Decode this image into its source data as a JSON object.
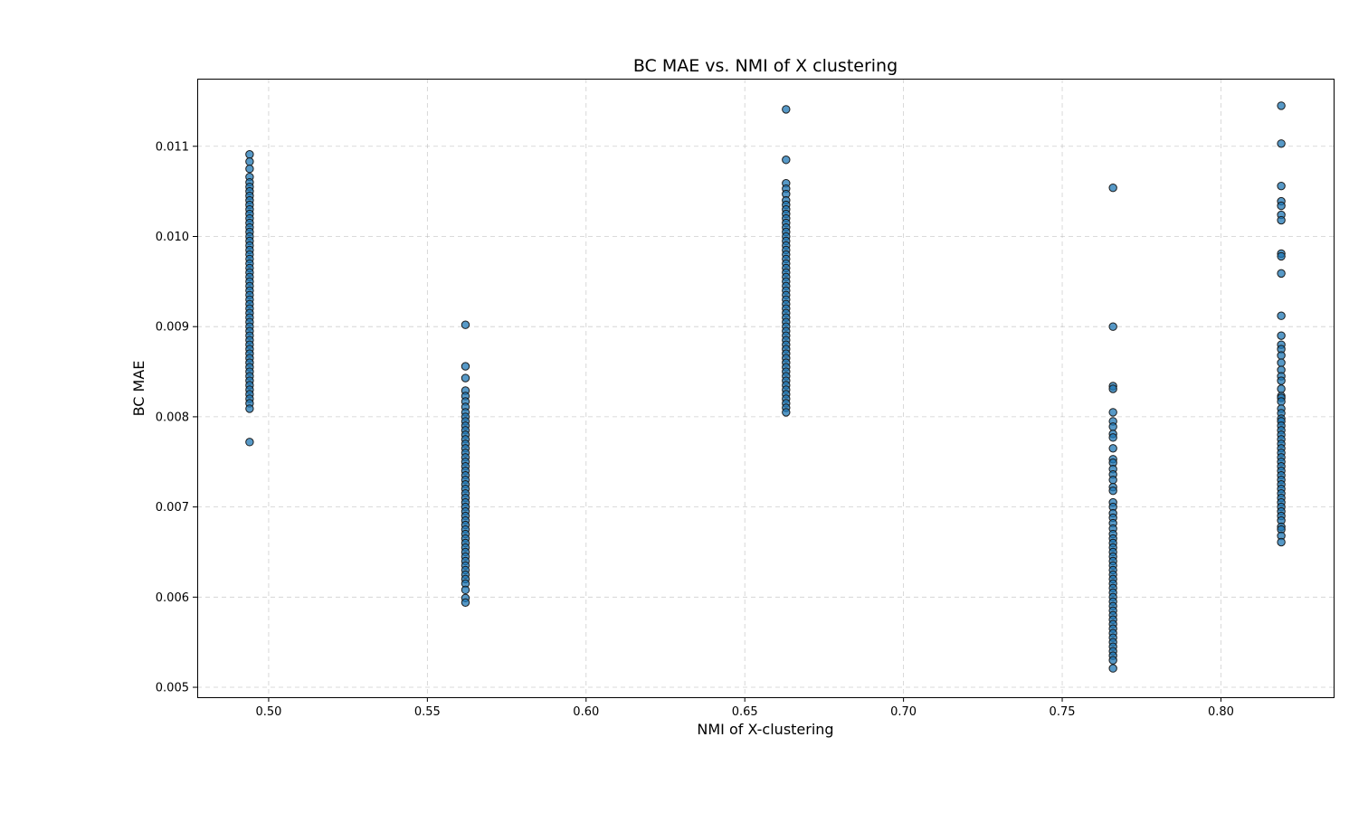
{
  "chart_data": {
    "type": "scatter",
    "title": "BC MAE vs. NMI of X clustering",
    "xlabel": "NMI of X-clustering",
    "ylabel": "BC MAE",
    "xlim": [
      0.4775,
      0.8355
    ],
    "ylim": [
      0.00489,
      0.01175
    ],
    "xticks": [
      0.5,
      0.55,
      0.6,
      0.65,
      0.7,
      0.75,
      0.8
    ],
    "xtick_labels": [
      "0.50",
      "0.55",
      "0.60",
      "0.65",
      "0.70",
      "0.75",
      "0.80"
    ],
    "yticks": [
      0.005,
      0.006,
      0.007,
      0.008,
      0.009,
      0.01,
      0.011
    ],
    "ytick_labels": [
      "0.005",
      "0.006",
      "0.007",
      "0.008",
      "0.009",
      "0.010",
      "0.011"
    ],
    "grid": true,
    "marker_color": "#1f77b4",
    "series": [
      {
        "x": 0.494,
        "y": [
          0.01091,
          0.01083,
          0.01075,
          0.01066,
          0.0106,
          0.01055,
          0.0105,
          0.01045,
          0.0104,
          0.01035,
          0.0103,
          0.01025,
          0.0102,
          0.01015,
          0.0101,
          0.01005,
          0.01,
          0.00995,
          0.0099,
          0.00985,
          0.0098,
          0.00975,
          0.0097,
          0.00965,
          0.0096,
          0.00955,
          0.0095,
          0.00945,
          0.0094,
          0.00935,
          0.0093,
          0.00925,
          0.0092,
          0.00915,
          0.0091,
          0.00905,
          0.009,
          0.00895,
          0.0089,
          0.00885,
          0.0088,
          0.00875,
          0.0087,
          0.00865,
          0.0086,
          0.00855,
          0.0085,
          0.00845,
          0.0084,
          0.00835,
          0.0083,
          0.00825,
          0.0082,
          0.00815,
          0.00809,
          0.00772
        ]
      },
      {
        "x": 0.562,
        "y": [
          0.00902,
          0.00856,
          0.00843,
          0.00829,
          0.00823,
          0.00817,
          0.00811,
          0.00805,
          0.008,
          0.00795,
          0.0079,
          0.00785,
          0.0078,
          0.00775,
          0.0077,
          0.00765,
          0.0076,
          0.00755,
          0.0075,
          0.00745,
          0.0074,
          0.00735,
          0.0073,
          0.00725,
          0.0072,
          0.00715,
          0.0071,
          0.00705,
          0.007,
          0.00695,
          0.0069,
          0.00685,
          0.0068,
          0.00675,
          0.0067,
          0.00665,
          0.0066,
          0.00655,
          0.0065,
          0.00645,
          0.0064,
          0.00635,
          0.0063,
          0.00625,
          0.0062,
          0.00615,
          0.00608,
          0.00599,
          0.00594
        ]
      },
      {
        "x": 0.663,
        "y": [
          0.01141,
          0.01085,
          0.01059,
          0.01053,
          0.01047,
          0.0104,
          0.01035,
          0.0103,
          0.01025,
          0.0102,
          0.01015,
          0.0101,
          0.01005,
          0.01,
          0.00995,
          0.0099,
          0.00985,
          0.0098,
          0.00975,
          0.0097,
          0.00965,
          0.0096,
          0.00955,
          0.0095,
          0.00945,
          0.0094,
          0.00935,
          0.0093,
          0.00925,
          0.0092,
          0.00915,
          0.0091,
          0.00905,
          0.009,
          0.00895,
          0.0089,
          0.00885,
          0.0088,
          0.00875,
          0.0087,
          0.00865,
          0.0086,
          0.00855,
          0.0085,
          0.00845,
          0.0084,
          0.00835,
          0.0083,
          0.00825,
          0.0082,
          0.00815,
          0.0081,
          0.00805
        ]
      },
      {
        "x": 0.766,
        "y": [
          0.01054,
          0.009,
          0.00834,
          0.00831,
          0.00805,
          0.00795,
          0.00789,
          0.00781,
          0.00777,
          0.00765,
          0.00753,
          0.00749,
          0.00742,
          0.00736,
          0.0073,
          0.00722,
          0.00718,
          0.00705,
          0.007,
          0.00693,
          0.00688,
          0.00682,
          0.00676,
          0.0067,
          0.00665,
          0.0066,
          0.00655,
          0.0065,
          0.00645,
          0.0064,
          0.00635,
          0.0063,
          0.00625,
          0.0062,
          0.00615,
          0.0061,
          0.00605,
          0.006,
          0.00595,
          0.0059,
          0.00585,
          0.0058,
          0.00575,
          0.0057,
          0.00565,
          0.0056,
          0.00555,
          0.0055,
          0.00545,
          0.0054,
          0.00535,
          0.0053,
          0.00521
        ]
      },
      {
        "x": 0.819,
        "y": [
          0.01145,
          0.01103,
          0.01056,
          0.01039,
          0.01034,
          0.01024,
          0.01018,
          0.00981,
          0.00978,
          0.00959,
          0.00912,
          0.0089,
          0.0088,
          0.00875,
          0.00868,
          0.0086,
          0.00852,
          0.00845,
          0.0084,
          0.00831,
          0.00823,
          0.00821,
          0.00817,
          0.00809,
          0.00804,
          0.00798,
          0.00795,
          0.0079,
          0.00785,
          0.0078,
          0.00775,
          0.0077,
          0.00765,
          0.0076,
          0.00755,
          0.0075,
          0.00745,
          0.0074,
          0.00735,
          0.0073,
          0.00725,
          0.0072,
          0.00715,
          0.0071,
          0.00705,
          0.007,
          0.00695,
          0.0069,
          0.00685,
          0.00678,
          0.00675,
          0.00668,
          0.00661
        ]
      }
    ]
  }
}
